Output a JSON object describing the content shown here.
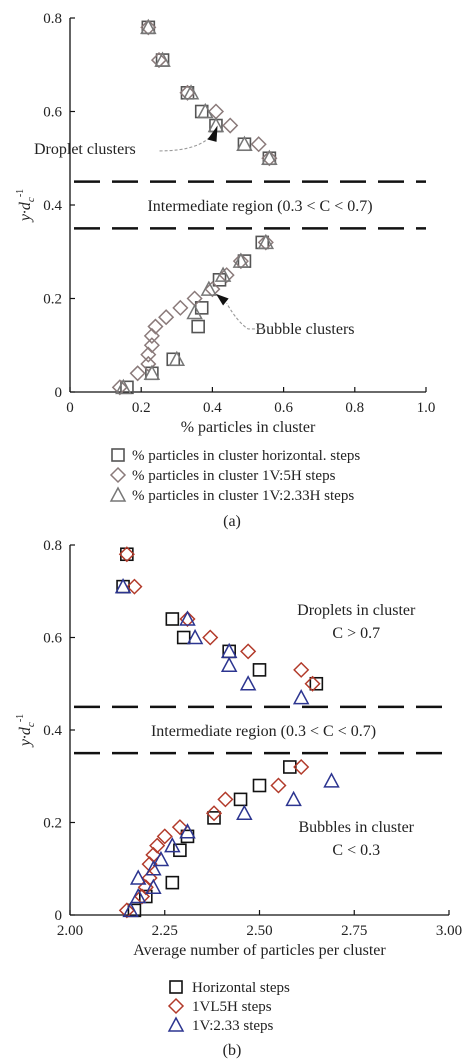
{
  "colors": {
    "grey_square": "#555555",
    "grey_diamond": "#8a7a7a",
    "grey_triangle": "#777777",
    "red": "#b23a2a",
    "blue": "#2c3590",
    "black": "#111111",
    "leader": "#9a9a9a"
  },
  "chart_data": [
    {
      "type": "scatter",
      "panel_label": "(a)",
      "xlabel": "% particles in cluster",
      "ylabel_main": "y·d",
      "ylabel_sub": "c",
      "ylabel_sup": "-1",
      "xlim": [
        0,
        1.0
      ],
      "ylim": [
        0,
        0.8
      ],
      "xticks": [
        "0",
        "0.2",
        "0.4",
        "0.6",
        "0.8",
        "1.0"
      ],
      "yticks": [
        "0",
        "0.2",
        "0.4",
        "0.6",
        "0.8"
      ],
      "hlines": [
        0.45,
        0.35
      ],
      "annotations": {
        "droplet": "Droplet clusters",
        "region": "Intermediate region (0.3 < C < 0.7)",
        "bubble": "Bubble clusters"
      },
      "series": [
        {
          "name": "% particles in cluster horizontal. steps",
          "marker": "square",
          "points": [
            [
              0.22,
              0.78
            ],
            [
              0.26,
              0.71
            ],
            [
              0.33,
              0.64
            ],
            [
              0.37,
              0.6
            ],
            [
              0.41,
              0.57
            ],
            [
              0.49,
              0.53
            ],
            [
              0.56,
              0.5
            ],
            [
              0.54,
              0.32
            ],
            [
              0.49,
              0.28
            ],
            [
              0.42,
              0.24
            ],
            [
              0.37,
              0.18
            ],
            [
              0.36,
              0.14
            ],
            [
              0.29,
              0.07
            ],
            [
              0.23,
              0.04
            ],
            [
              0.16,
              0.01
            ]
          ]
        },
        {
          "name": "% particles in cluster 1V:5H steps",
          "marker": "diamond",
          "points": [
            [
              0.22,
              0.78
            ],
            [
              0.25,
              0.71
            ],
            [
              0.33,
              0.64
            ],
            [
              0.41,
              0.6
            ],
            [
              0.45,
              0.57
            ],
            [
              0.53,
              0.53
            ],
            [
              0.56,
              0.5
            ],
            [
              0.55,
              0.32
            ],
            [
              0.48,
              0.28
            ],
            [
              0.44,
              0.25
            ],
            [
              0.4,
              0.22
            ],
            [
              0.35,
              0.2
            ],
            [
              0.31,
              0.18
            ],
            [
              0.27,
              0.16
            ],
            [
              0.24,
              0.14
            ],
            [
              0.23,
              0.12
            ],
            [
              0.23,
              0.1
            ],
            [
              0.22,
              0.08
            ],
            [
              0.22,
              0.06
            ],
            [
              0.19,
              0.04
            ],
            [
              0.14,
              0.01
            ]
          ]
        },
        {
          "name": "% particles in cluster 1V:2.33H steps",
          "marker": "triangle",
          "points": [
            [
              0.22,
              0.78
            ],
            [
              0.26,
              0.71
            ],
            [
              0.34,
              0.64
            ],
            [
              0.38,
              0.6
            ],
            [
              0.41,
              0.57
            ],
            [
              0.49,
              0.53
            ],
            [
              0.56,
              0.5
            ],
            [
              0.55,
              0.32
            ],
            [
              0.48,
              0.28
            ],
            [
              0.43,
              0.25
            ],
            [
              0.39,
              0.22
            ],
            [
              0.35,
              0.17
            ],
            [
              0.3,
              0.07
            ],
            [
              0.23,
              0.04
            ],
            [
              0.15,
              0.01
            ]
          ]
        }
      ]
    },
    {
      "type": "scatter",
      "panel_label": "(b)",
      "xlabel": "Average number of particles per cluster",
      "ylabel_main": "y·d",
      "ylabel_sub": "c",
      "ylabel_sup": "-1",
      "xlim": [
        2.0,
        3.0
      ],
      "ylim": [
        0,
        0.8
      ],
      "xticks": [
        "2.00",
        "2.25",
        "2.50",
        "2.75",
        "3.00"
      ],
      "yticks": [
        "0",
        "0.2",
        "0.4",
        "0.6",
        "0.8"
      ],
      "hlines": [
        0.45,
        0.35
      ],
      "annotations": {
        "droplet_line1": "Droplets in cluster",
        "droplet_line2": "C > 0.7",
        "region": "Intermediate region (0.3 < C < 0.7)",
        "bubble_line1": "Bubbles in cluster",
        "bubble_line2": "C < 0.3"
      },
      "series": [
        {
          "name": "Horizontal steps",
          "marker": "square",
          "points": [
            [
              2.15,
              0.78
            ],
            [
              2.14,
              0.71
            ],
            [
              2.27,
              0.64
            ],
            [
              2.3,
              0.6
            ],
            [
              2.42,
              0.57
            ],
            [
              2.5,
              0.53
            ],
            [
              2.65,
              0.5
            ],
            [
              2.58,
              0.32
            ],
            [
              2.5,
              0.28
            ],
            [
              2.45,
              0.25
            ],
            [
              2.38,
              0.21
            ],
            [
              2.31,
              0.17
            ],
            [
              2.29,
              0.14
            ],
            [
              2.27,
              0.07
            ],
            [
              2.2,
              0.04
            ],
            [
              2.17,
              0.01
            ]
          ]
        },
        {
          "name": "1VL5H steps",
          "marker": "diamond",
          "points": [
            [
              2.15,
              0.78
            ],
            [
              2.17,
              0.71
            ],
            [
              2.31,
              0.64
            ],
            [
              2.37,
              0.6
            ],
            [
              2.47,
              0.57
            ],
            [
              2.61,
              0.53
            ],
            [
              2.64,
              0.5
            ],
            [
              2.61,
              0.32
            ],
            [
              2.55,
              0.28
            ],
            [
              2.41,
              0.25
            ],
            [
              2.38,
              0.22
            ],
            [
              2.29,
              0.19
            ],
            [
              2.25,
              0.17
            ],
            [
              2.23,
              0.15
            ],
            [
              2.22,
              0.13
            ],
            [
              2.21,
              0.11
            ],
            [
              2.21,
              0.08
            ],
            [
              2.2,
              0.06
            ],
            [
              2.19,
              0.04
            ],
            [
              2.15,
              0.01
            ]
          ]
        },
        {
          "name": "1V:2.33 steps",
          "marker": "triangle",
          "points": [
            [
              2.14,
              0.71
            ],
            [
              2.31,
              0.64
            ],
            [
              2.33,
              0.6
            ],
            [
              2.42,
              0.57
            ],
            [
              2.42,
              0.54
            ],
            [
              2.47,
              0.5
            ],
            [
              2.61,
              0.47
            ],
            [
              2.69,
              0.29
            ],
            [
              2.59,
              0.25
            ],
            [
              2.46,
              0.22
            ],
            [
              2.31,
              0.18
            ],
            [
              2.27,
              0.15
            ],
            [
              2.24,
              0.12
            ],
            [
              2.22,
              0.1
            ],
            [
              2.18,
              0.08
            ],
            [
              2.22,
              0.06
            ],
            [
              2.18,
              0.04
            ],
            [
              2.16,
              0.01
            ]
          ]
        }
      ]
    }
  ]
}
